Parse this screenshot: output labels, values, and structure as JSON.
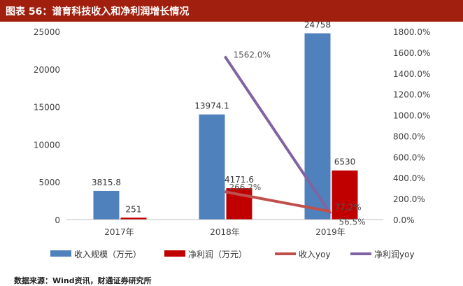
{
  "title": "图表 56：谱育科技收入和净利润增长情况",
  "source": "数据来源：Wind资讯，财通证券研究所",
  "colors": {
    "title_bg": "#a01f0e",
    "revenue_bar": "#4f81bd",
    "profit_bar": "#c00000",
    "revenue_yoy_line": "#c0504d",
    "profit_yoy_line": "#8064a2",
    "axis_text": "#404040"
  },
  "chart_data": {
    "type": "bar",
    "categories": [
      "2017年",
      "2018年",
      "2019年"
    ],
    "series": [
      {
        "name": "收入规模（万元）",
        "kind": "bar",
        "axis": "left",
        "values": [
          3815.8,
          13974.1,
          24758
        ],
        "labels": [
          "3815.8",
          "13974.1",
          "24758"
        ]
      },
      {
        "name": "净利润（万元）",
        "kind": "bar",
        "axis": "left",
        "values": [
          251,
          4171.6,
          6530
        ],
        "labels": [
          "251",
          "4171.6",
          "6530"
        ]
      },
      {
        "name": "收入yoy",
        "kind": "line",
        "axis": "right",
        "values": [
          null,
          266.2,
          77.2
        ],
        "labels": [
          "",
          "266.2%",
          "77.2%"
        ]
      },
      {
        "name": "净利润yoy",
        "kind": "line",
        "axis": "right",
        "values": [
          null,
          1562.0,
          56.5
        ],
        "labels": [
          "",
          "1562.0%",
          "56.5%"
        ]
      }
    ],
    "y_left": {
      "min": 0,
      "max": 25000,
      "ticks": [
        "0",
        "5000",
        "10000",
        "15000",
        "20000",
        "25000"
      ]
    },
    "y_right": {
      "min": 0,
      "max": 1800,
      "ticks": [
        "0.0%",
        "200.0%",
        "400.0%",
        "600.0%",
        "800.0%",
        "1000.0%",
        "1200.0%",
        "1400.0%",
        "1600.0%",
        "1800.0%"
      ]
    },
    "grid": false,
    "legend_position": "bottom"
  }
}
